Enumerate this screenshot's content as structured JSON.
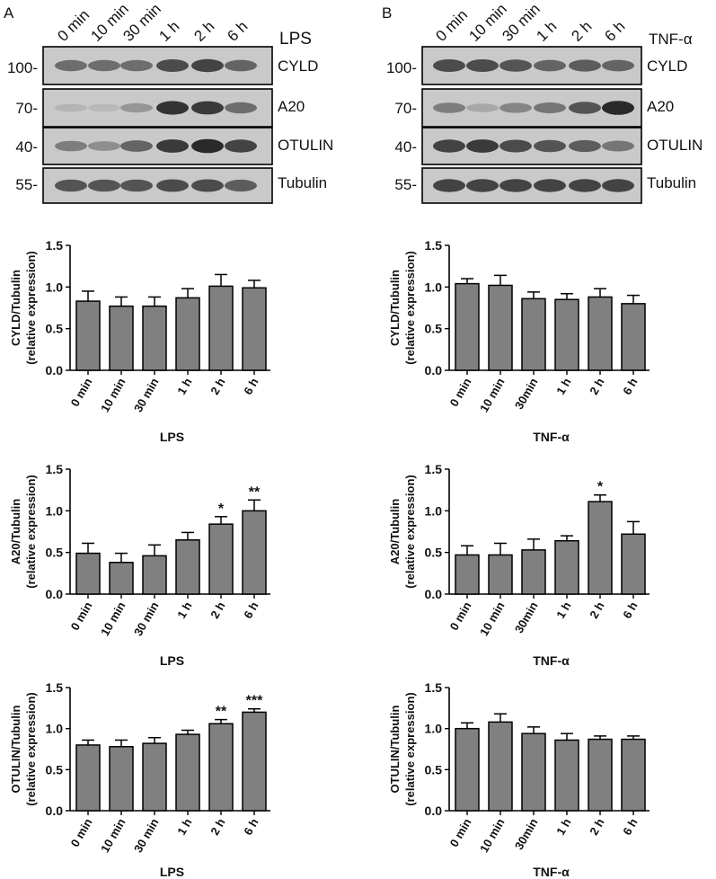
{
  "panels": [
    {
      "letter": "A",
      "blot": {
        "treatment": "LPS",
        "lanes": [
          "0 min",
          "10 min",
          "30 min",
          "1 h",
          "2 h",
          "6 h"
        ],
        "strips": [
          {
            "mw": "100-",
            "protein": "CYLD",
            "band_intensity": [
              0.55,
              0.55,
              0.55,
              0.75,
              0.8,
              0.6
            ]
          },
          {
            "mw": "70-",
            "protein": "A20",
            "band_intensity": [
              0.12,
              0.1,
              0.3,
              0.9,
              0.85,
              0.55
            ]
          },
          {
            "mw": "40-",
            "protein": "OTULIN",
            "band_intensity": [
              0.45,
              0.35,
              0.6,
              0.85,
              0.95,
              0.8
            ]
          },
          {
            "mw": "55-",
            "protein": "Tubulin",
            "band_intensity": [
              0.7,
              0.7,
              0.7,
              0.75,
              0.75,
              0.65
            ]
          }
        ]
      }
    },
    {
      "letter": "B",
      "blot": {
        "treatment": "TNF-α",
        "lanes": [
          "0 min",
          "10 min",
          "30 min",
          "1 h",
          "2 h",
          "6 h"
        ],
        "strips": [
          {
            "mw": "100-",
            "protein": "CYLD",
            "band_intensity": [
              0.75,
              0.75,
              0.7,
              0.6,
              0.65,
              0.6
            ]
          },
          {
            "mw": "70-",
            "protein": "A20",
            "band_intensity": [
              0.45,
              0.2,
              0.4,
              0.5,
              0.7,
              0.95
            ]
          },
          {
            "mw": "40-",
            "protein": "OTULIN",
            "band_intensity": [
              0.8,
              0.85,
              0.75,
              0.7,
              0.65,
              0.5
            ]
          },
          {
            "mw": "55-",
            "protein": "Tubulin",
            "band_intensity": [
              0.8,
              0.8,
              0.8,
              0.8,
              0.8,
              0.8
            ]
          }
        ]
      }
    }
  ],
  "chart_data": [
    {
      "type": "bar",
      "panel": "A",
      "categories": [
        "0 min",
        "10 min",
        "30 min",
        "1 h",
        "2 h",
        "6 h"
      ],
      "values": [
        0.83,
        0.77,
        0.77,
        0.87,
        1.01,
        0.99
      ],
      "errors": [
        0.12,
        0.11,
        0.11,
        0.11,
        0.14,
        0.09
      ],
      "significance": [
        "",
        "",
        "",
        "",
        "",
        ""
      ],
      "xlabel": "LPS",
      "ylabel": [
        "CYLD/Tubulin",
        "(relative expression)"
      ],
      "ylim": [
        0,
        1.5
      ],
      "yticks": [
        "0.0",
        "0.5",
        "1.0",
        "1.5"
      ],
      "bar_color": "#808080"
    },
    {
      "type": "bar",
      "panel": "B",
      "categories": [
        "0 min",
        "10 min",
        "30min",
        "1 h",
        "2 h",
        "6 h"
      ],
      "values": [
        1.04,
        1.02,
        0.86,
        0.85,
        0.88,
        0.8
      ],
      "errors": [
        0.06,
        0.12,
        0.08,
        0.07,
        0.1,
        0.1
      ],
      "significance": [
        "",
        "",
        "",
        "",
        "",
        ""
      ],
      "xlabel": "TNF-α",
      "ylabel": [
        "CYLD/Tubulin",
        "(relative expression)"
      ],
      "ylim": [
        0,
        1.5
      ],
      "yticks": [
        "0.0",
        "0.5",
        "1.0",
        "1.5"
      ],
      "bar_color": "#808080"
    },
    {
      "type": "bar",
      "panel": "A",
      "categories": [
        "0 min",
        "10 min",
        "30 min",
        "1 h",
        "2 h",
        "6 h"
      ],
      "values": [
        0.49,
        0.38,
        0.46,
        0.65,
        0.84,
        1.0
      ],
      "errors": [
        0.12,
        0.11,
        0.13,
        0.09,
        0.09,
        0.13
      ],
      "significance": [
        "",
        "",
        "",
        "",
        "*",
        "**"
      ],
      "xlabel": "LPS",
      "ylabel": [
        "A20/Tubulin",
        "(relative expression)"
      ],
      "ylim": [
        0,
        1.5
      ],
      "yticks": [
        "0.0",
        "0.5",
        "1.0",
        "1.5"
      ],
      "bar_color": "#808080"
    },
    {
      "type": "bar",
      "panel": "B",
      "categories": [
        "0 min",
        "10 min",
        "30min",
        "1 h",
        "2 h",
        "6 h"
      ],
      "values": [
        0.47,
        0.47,
        0.53,
        0.64,
        1.11,
        0.72
      ],
      "errors": [
        0.11,
        0.14,
        0.13,
        0.06,
        0.08,
        0.15
      ],
      "significance": [
        "",
        "",
        "",
        "",
        "*",
        ""
      ],
      "xlabel": "TNF-α",
      "ylabel": [
        "A20/Tubulin",
        "(relative expression)"
      ],
      "ylim": [
        0,
        1.5
      ],
      "yticks": [
        "0.0",
        "0.5",
        "1.0",
        "1.5"
      ],
      "bar_color": "#808080"
    },
    {
      "type": "bar",
      "panel": "A",
      "categories": [
        "0 min",
        "10 min",
        "30 min",
        "1 h",
        "2 h",
        "6 h"
      ],
      "values": [
        0.8,
        0.78,
        0.82,
        0.93,
        1.06,
        1.2
      ],
      "errors": [
        0.06,
        0.08,
        0.07,
        0.05,
        0.05,
        0.04
      ],
      "significance": [
        "",
        "",
        "",
        "",
        "**",
        "***"
      ],
      "xlabel": "LPS",
      "ylabel": [
        "OTULIN/Tubulin",
        "(relative expression)"
      ],
      "ylim": [
        0,
        1.5
      ],
      "yticks": [
        "0.0",
        "0.5",
        "1.0",
        "1.5"
      ],
      "bar_color": "#808080"
    },
    {
      "type": "bar",
      "panel": "B",
      "categories": [
        "0 min",
        "10 min",
        "30min",
        "1 h",
        "2 h",
        "6 h"
      ],
      "values": [
        1.0,
        1.08,
        0.94,
        0.86,
        0.87,
        0.87
      ],
      "errors": [
        0.07,
        0.1,
        0.08,
        0.08,
        0.04,
        0.04
      ],
      "significance": [
        "",
        "",
        "",
        "",
        "",
        ""
      ],
      "xlabel": "TNF-α",
      "ylabel": [
        "OTULIN/Tubulin",
        "(relative expression)"
      ],
      "ylim": [
        0,
        1.5
      ],
      "yticks": [
        "0.0",
        "0.5",
        "1.0",
        "1.5"
      ],
      "bar_color": "#808080"
    }
  ]
}
